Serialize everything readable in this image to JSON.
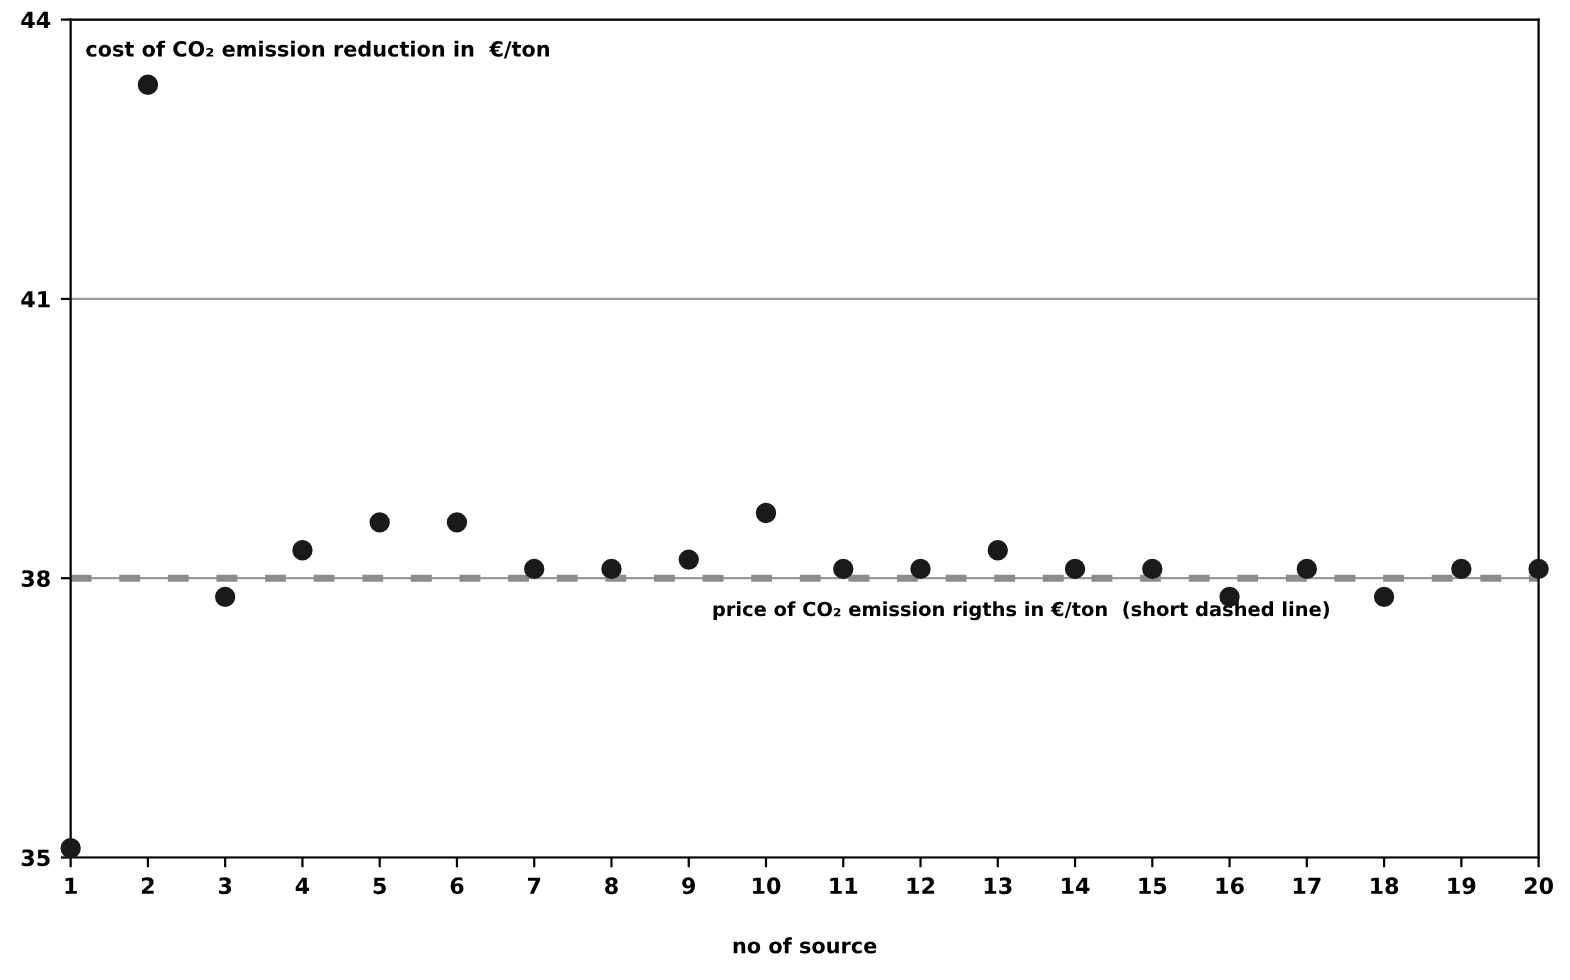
{
  "chart_data": {
    "type": "scatter",
    "title": "cost of CO₂ emission reduction in  €/ton",
    "xlabel": "no of source",
    "x": [
      1,
      2,
      3,
      4,
      5,
      6,
      7,
      8,
      9,
      10,
      11,
      12,
      13,
      14,
      15,
      16,
      17,
      18,
      19,
      20
    ],
    "series": [
      {
        "color": "#1a1a1a",
        "values": [
          35.1,
          43.3,
          37.8,
          38.3,
          38.6,
          38.6,
          38.1,
          38.1,
          38.2,
          38.7,
          38.1,
          38.1,
          38.3,
          38.1,
          38.1,
          37.8,
          38.1,
          37.8,
          38.1,
          38.1
        ]
      }
    ],
    "xlim": [
      1,
      20
    ],
    "xticks": [
      1,
      2,
      3,
      4,
      5,
      6,
      7,
      8,
      9,
      10,
      11,
      12,
      13,
      14,
      15,
      16,
      17,
      18,
      19,
      20
    ],
    "ylim": [
      35,
      44
    ],
    "yticks": [
      35,
      38,
      41,
      44
    ],
    "ref_lines": [
      {
        "axis": "y",
        "value": 38,
        "label": "price of CO₂ emission rigths in €/ton  (short dashed line)",
        "color": "#8c8c8c",
        "line_style": "dashed"
      }
    ],
    "grid": "y",
    "marker": "circle"
  }
}
